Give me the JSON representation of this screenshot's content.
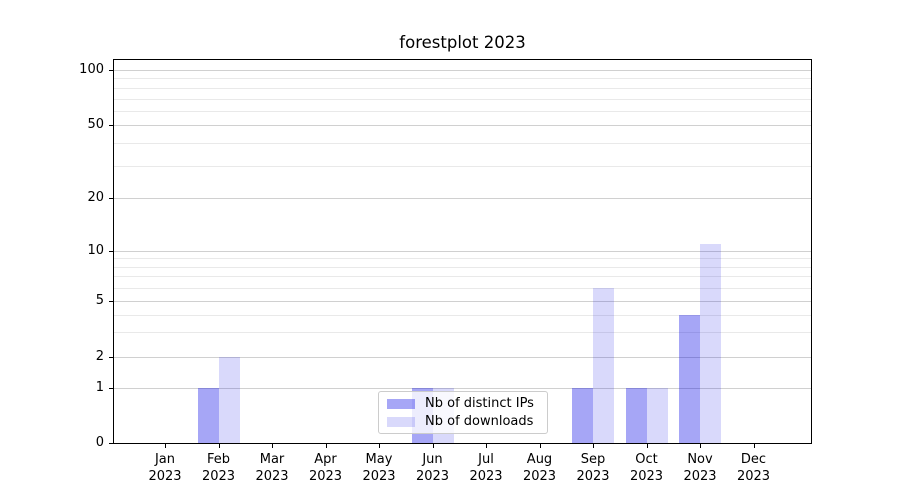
{
  "chart_data": {
    "type": "bar",
    "title": "forestplot 2023",
    "x_month_labels": [
      "Jan",
      "Feb",
      "Mar",
      "Apr",
      "May",
      "Jun",
      "Jul",
      "Aug",
      "Sep",
      "Oct",
      "Nov",
      "Dec"
    ],
    "x_year_label": "2023",
    "series": [
      {
        "name": "Nb of distinct IPs",
        "color_hex": "#0000e6",
        "alpha": 0.35,
        "values": [
          0,
          1,
          0,
          0,
          0,
          1,
          0,
          0,
          1,
          1,
          4,
          0
        ]
      },
      {
        "name": "Nb of downloads",
        "color_hex": "#0000e6",
        "alpha": 0.15,
        "values": [
          0,
          2,
          0,
          0,
          0,
          1,
          0,
          0,
          6,
          1,
          11,
          0
        ]
      }
    ],
    "yscale": "log above 1, linear 0-1",
    "ytick_labels": [
      "0",
      "1",
      "2",
      "5",
      "10",
      "20",
      "50",
      "100"
    ],
    "ytick_values": [
      0,
      1,
      2,
      5,
      10,
      20,
      50,
      100
    ],
    "minor_grid_values": [
      3,
      4,
      6,
      7,
      8,
      9,
      30,
      40,
      60,
      70,
      80,
      90
    ],
    "grid": "on",
    "legend": {
      "position": "lower center",
      "entries": [
        "Nb of distinct IPs",
        "Nb of downloads"
      ]
    },
    "colors": {
      "grid_major": "#d0d0d0",
      "grid_minor": "#e9e9e9",
      "axis": "#000000",
      "legend_border": "#cccccc",
      "title_text": "#000000"
    }
  }
}
